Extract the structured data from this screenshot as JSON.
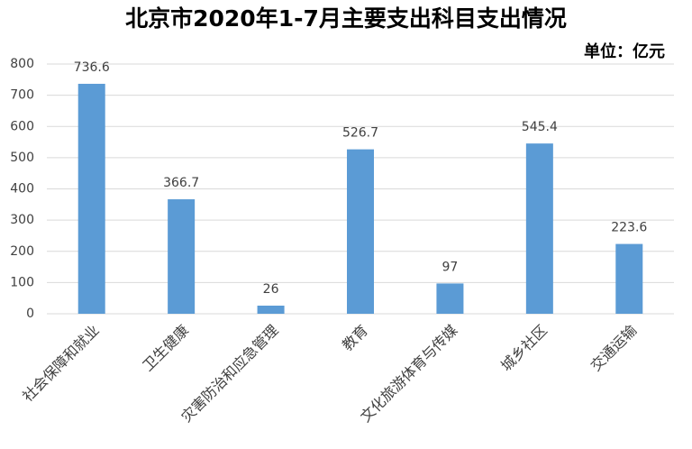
{
  "chart_data": {
    "type": "bar",
    "title": "北京市2020年1-7月主要支出科目支出情况",
    "annotation": "单位：亿元",
    "categories": [
      "社会保障和就业",
      "卫生健康",
      "灾害防治和应急管理",
      "教育",
      "文化旅游体育与传媒",
      "城乡社区",
      "交通运输"
    ],
    "values": [
      736.6,
      366.7,
      26,
      526.7,
      97,
      545.4,
      223.6
    ],
    "color": "#5b9bd5",
    "ylim": [
      0,
      800
    ],
    "yticks": [
      0,
      100,
      200,
      300,
      400,
      500,
      600,
      700,
      800
    ],
    "grid": true
  }
}
